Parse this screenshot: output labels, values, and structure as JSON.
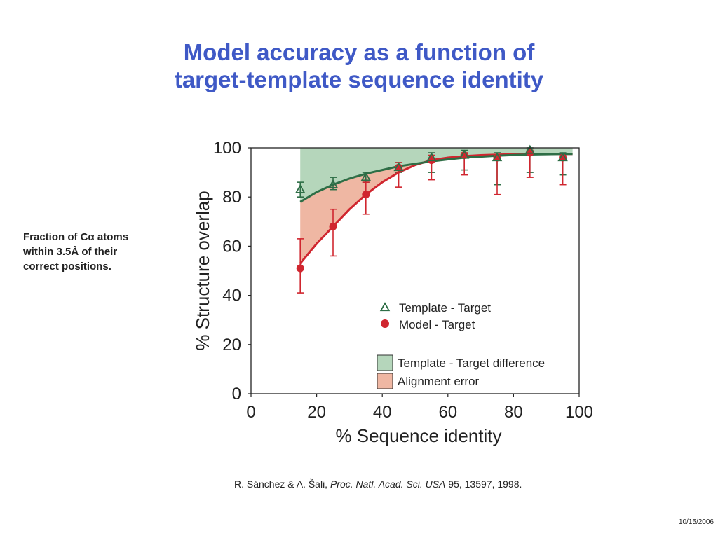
{
  "slide": {
    "title_line1": "Model accuracy as a function of",
    "title_line2": "target-template sequence identity",
    "side_note_line1": "Fraction of Cα atoms",
    "side_note_line2": "within 3.5Å of their",
    "side_note_line3": "correct positions.",
    "citation_authors": "R. Sánchez & A. Šali, ",
    "citation_journal": "Proc. Natl. Acad. Sci. USA",
    "citation_rest": " 95, 13597, 1998.",
    "date": "10/15/2006"
  },
  "colors": {
    "title": "#3f59c6",
    "template_series": "#2e6e46",
    "model_series": "#d0262f",
    "template_diff_fill": "#b5d6bb",
    "alignment_error_fill": "#efb7a3"
  },
  "chart_data": {
    "type": "scatter",
    "xlabel": "% Sequence identity",
    "ylabel": "% Structure overlap",
    "xlim": [
      0,
      100
    ],
    "ylim": [
      0,
      100
    ],
    "x_ticks": [
      "0",
      "20",
      "40",
      "60",
      "80",
      "100"
    ],
    "y_ticks": [
      "0",
      "20",
      "40",
      "60",
      "80",
      "100"
    ],
    "grid": false,
    "legend_position": "lower-right",
    "series": [
      {
        "name": "Template - Target",
        "marker": "open-triangle",
        "color": "#2e6e46",
        "x": [
          15,
          25,
          35,
          45,
          55,
          65,
          75,
          85,
          95
        ],
        "y": [
          83,
          85,
          88,
          92,
          96,
          97,
          96,
          99,
          96
        ],
        "err_low": [
          80,
          83,
          86,
          90,
          90,
          91,
          85,
          90,
          89
        ],
        "err_high": [
          86,
          88,
          90,
          94,
          98,
          99,
          98,
          100,
          98
        ]
      },
      {
        "name": "Model - Target",
        "marker": "filled-circle",
        "color": "#d0262f",
        "x": [
          15,
          25,
          35,
          45,
          55,
          65,
          75,
          85,
          95
        ],
        "y": [
          51,
          68,
          81,
          92,
          95,
          97,
          96,
          98,
          96
        ],
        "err_low": [
          41,
          56,
          73,
          84,
          87,
          89,
          81,
          88,
          85
        ],
        "err_high": [
          63,
          75,
          86,
          94,
          97,
          98,
          97,
          99,
          97
        ]
      }
    ],
    "template_curve": [
      [
        15,
        78
      ],
      [
        20,
        82
      ],
      [
        25,
        85
      ],
      [
        30,
        87.5
      ],
      [
        35,
        89.5
      ],
      [
        40,
        91
      ],
      [
        45,
        92.5
      ],
      [
        50,
        93.5
      ],
      [
        55,
        94.5
      ],
      [
        60,
        95.3
      ],
      [
        65,
        96
      ],
      [
        70,
        96.4
      ],
      [
        75,
        96.8
      ],
      [
        80,
        97.1
      ],
      [
        85,
        97.3
      ],
      [
        90,
        97.4
      ],
      [
        95,
        97.5
      ],
      [
        98,
        97.5
      ]
    ],
    "model_curve": [
      [
        15,
        53
      ],
      [
        20,
        61
      ],
      [
        25,
        68
      ],
      [
        30,
        75
      ],
      [
        35,
        81
      ],
      [
        40,
        86
      ],
      [
        45,
        90
      ],
      [
        50,
        93
      ],
      [
        55,
        95
      ],
      [
        60,
        96
      ],
      [
        65,
        96.6
      ],
      [
        70,
        97
      ],
      [
        75,
        97.2
      ],
      [
        80,
        97.4
      ],
      [
        85,
        97.5
      ],
      [
        90,
        97.5
      ],
      [
        95,
        97.5
      ],
      [
        98,
        97.5
      ]
    ],
    "regions": [
      {
        "name": "Template - Target difference",
        "color": "#b5d6bb"
      },
      {
        "name": "Alignment error",
        "color": "#efb7a3"
      }
    ]
  }
}
